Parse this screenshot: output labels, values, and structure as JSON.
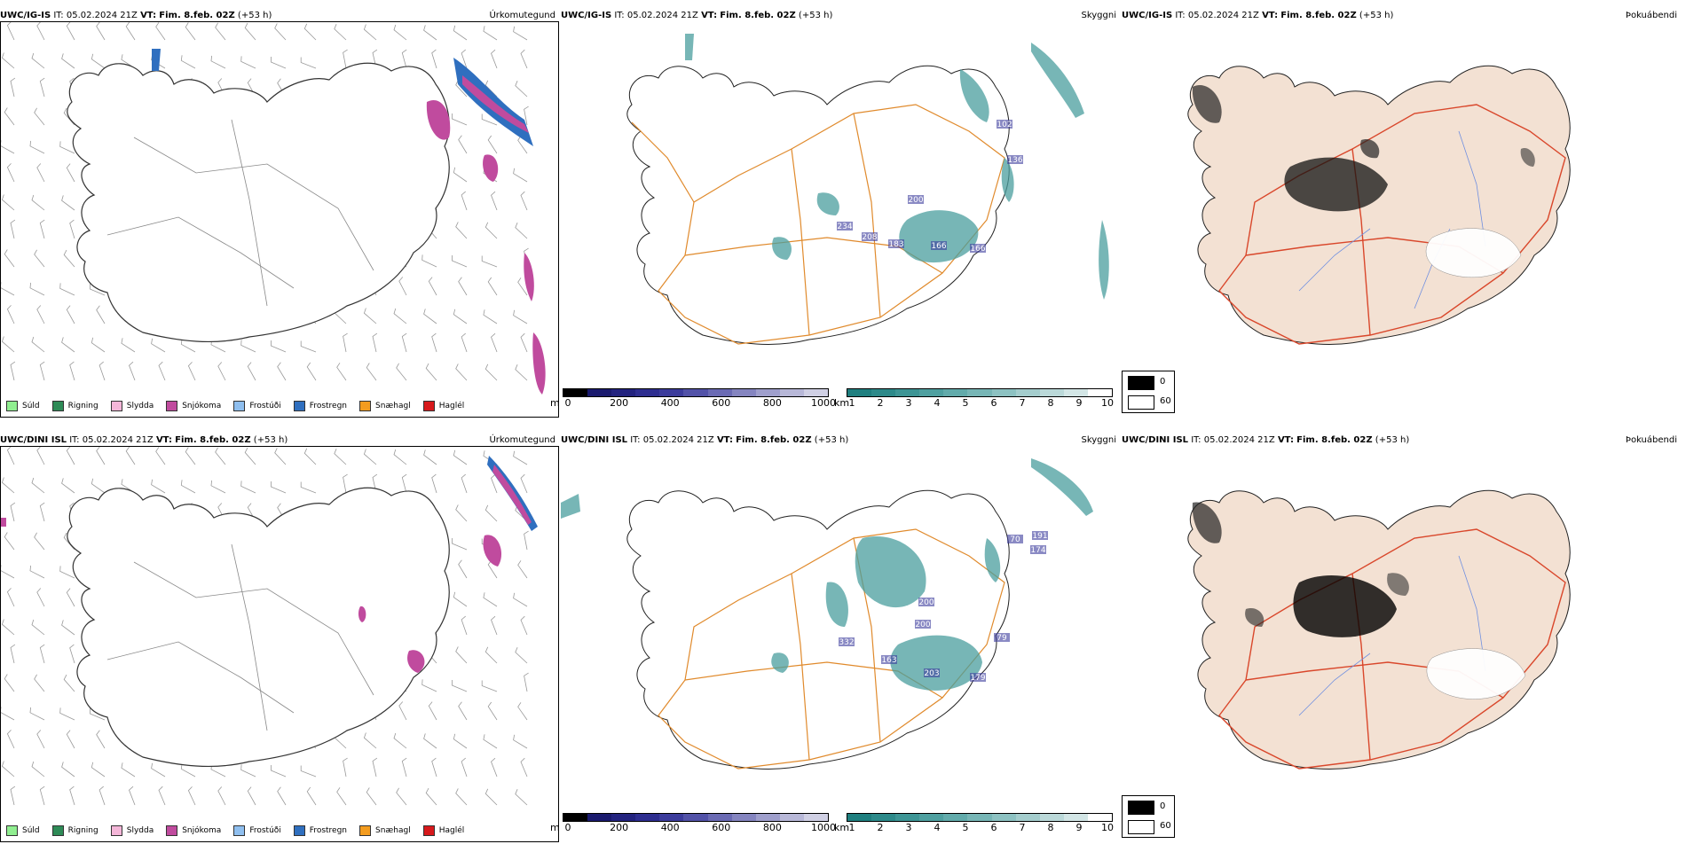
{
  "rows": [
    {
      "model": "UWC/IG-IS",
      "init_label": "IT:",
      "init": "05.02.2024 21Z",
      "valid_label": "VT:",
      "valid": "Fim. 8.feb. 02Z",
      "lead": "(+53 h)"
    },
    {
      "model": "UWC/DINI ISL",
      "init_label": "IT:",
      "init": "05.02.2024 21Z",
      "valid_label": "VT:",
      "valid": "Fim. 8.feb. 02Z",
      "lead": "(+53 h)"
    }
  ],
  "panel_titles": {
    "precip": "Úrkomutegund",
    "visibility": "Skyggni",
    "fog": "Þokuábendi"
  },
  "precip_legend": [
    {
      "label": "Súld",
      "color": "#90ee90"
    },
    {
      "label": "Rigning",
      "color": "#2e8b57"
    },
    {
      "label": "Slydda",
      "color": "#f4b6d8"
    },
    {
      "label": "Snjókoma",
      "color": "#c04b9e"
    },
    {
      "label": "Frostúði",
      "color": "#8fbfef"
    },
    {
      "label": "Frostregn",
      "color": "#2f6fbf"
    },
    {
      "label": "Snæhagl",
      "color": "#f39c1f"
    },
    {
      "label": "Haglél",
      "color": "#d7191c"
    }
  ],
  "visibility_scale_m": {
    "unit": "m",
    "ticks": [
      "0",
      "200",
      "400",
      "600",
      "800",
      "1000"
    ],
    "colors": [
      "#000000",
      "#1a1a6e",
      "#23237f",
      "#2e2e90",
      "#3c3c9c",
      "#5252a8",
      "#6b6bb4",
      "#8585c0",
      "#9f9fcc",
      "#b8b8d8",
      "#d0d0e4"
    ]
  },
  "visibility_scale_km": {
    "unit": "km",
    "ticks": [
      "1",
      "2",
      "3",
      "4",
      "5",
      "6",
      "7",
      "8",
      "9",
      "10"
    ],
    "colors": [
      "#1f7f7f",
      "#2d8a8a",
      "#3d9595",
      "#4fa0a0",
      "#62abab",
      "#77b6b6",
      "#8dc2c2",
      "#a4cdcd",
      "#bbd9d9",
      "#d3e6e6",
      "#ffffff"
    ]
  },
  "fog_legend": [
    {
      "label": "0",
      "color": "#000000"
    },
    {
      "label": "60",
      "color": "#ffffff"
    }
  ],
  "vis_labels_row1": [
    "102",
    "136",
    "200",
    "234",
    "208",
    "183",
    "166",
    "166"
  ],
  "vis_labels_row2": [
    "191",
    "174",
    "70",
    "200",
    "200",
    "332",
    "163",
    "203",
    "179",
    "79"
  ],
  "colors": {
    "land_fog": "#f3e1d3",
    "road_orange": "#e08a2c",
    "road_red": "#d9472b",
    "river_blue": "#6f8fe0",
    "vis_teal": "#4a9e9e",
    "coast": "#222222"
  }
}
